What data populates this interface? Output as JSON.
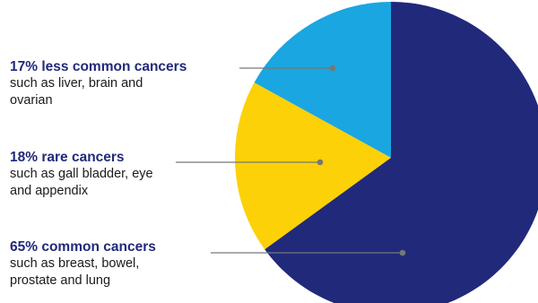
{
  "chart_data": {
    "type": "pie",
    "slices": [
      {
        "pct_text": "17%",
        "label": "less common cancers",
        "description": "such as liver, brain and ovarian",
        "value": 17,
        "color": "#1aa6e0"
      },
      {
        "pct_text": "18%",
        "label": "rare cancers",
        "description": "such as gall bladder, eye and appendix",
        "value": 18,
        "color": "#fcd107"
      },
      {
        "pct_text": "65%",
        "label": "common cancers",
        "description": "such as breast, bowel, prostate and lung",
        "value": 65,
        "color": "#21297a"
      }
    ],
    "start_angle_deg": 0,
    "direction": "counterclockwise",
    "legend": "left, callout lines"
  },
  "colors": {
    "heading": "#21297a",
    "body_text": "#1a1a1a",
    "leader_line": "#777777"
  }
}
